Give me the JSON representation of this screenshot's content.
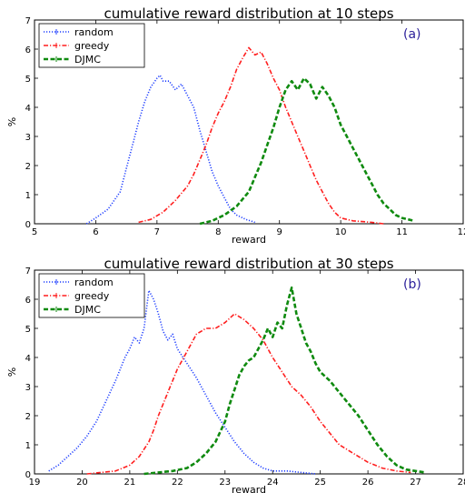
{
  "chart_data": [
    {
      "type": "line",
      "title": "cumulative reward distribution at 10 steps",
      "xlabel": "reward",
      "ylabel": "%",
      "xlim": [
        5,
        12
      ],
      "ylim": [
        0,
        7
      ],
      "xticks": [
        "5",
        "6",
        "7",
        "8",
        "9",
        "10",
        "11",
        "12"
      ],
      "yticks": [
        "0",
        "1",
        "2",
        "3",
        "4",
        "5",
        "6",
        "7"
      ],
      "annotation": "(a)",
      "legend_position": "top-left",
      "grid": false,
      "series": [
        {
          "name": "random",
          "color": "#1f3fff",
          "style": "dotted",
          "x": [
            5.85,
            6.0,
            6.2,
            6.4,
            6.5,
            6.6,
            6.7,
            6.8,
            6.9,
            7.0,
            7.05,
            7.1,
            7.2,
            7.3,
            7.4,
            7.5,
            7.6,
            7.7,
            7.8,
            7.9,
            8.0,
            8.1,
            8.2,
            8.3,
            8.45,
            8.6
          ],
          "y": [
            0.0,
            0.2,
            0.5,
            1.1,
            1.9,
            2.7,
            3.5,
            4.2,
            4.7,
            5.0,
            5.1,
            4.9,
            4.9,
            4.6,
            4.8,
            4.4,
            4.0,
            3.2,
            2.5,
            1.8,
            1.3,
            0.9,
            0.5,
            0.3,
            0.15,
            0.05
          ]
        },
        {
          "name": "greedy",
          "color": "#ff1f1f",
          "style": "dashdot",
          "x": [
            6.7,
            6.9,
            7.1,
            7.3,
            7.5,
            7.6,
            7.7,
            7.8,
            7.9,
            8.0,
            8.1,
            8.2,
            8.3,
            8.4,
            8.5,
            8.6,
            8.7,
            8.8,
            8.9,
            9.0,
            9.1,
            9.2,
            9.3,
            9.4,
            9.5,
            9.6,
            9.7,
            9.8,
            9.9,
            10.0,
            10.2,
            10.5,
            10.7
          ],
          "y": [
            0.05,
            0.15,
            0.4,
            0.8,
            1.3,
            1.7,
            2.2,
            2.7,
            3.3,
            3.8,
            4.2,
            4.7,
            5.3,
            5.7,
            6.05,
            5.8,
            5.9,
            5.5,
            5.0,
            4.6,
            4.0,
            3.5,
            3.0,
            2.5,
            2.0,
            1.5,
            1.1,
            0.7,
            0.4,
            0.2,
            0.1,
            0.05,
            0.0
          ]
        },
        {
          "name": "DJMC",
          "color": "#0f8a0f",
          "style": "dashed",
          "x": [
            7.7,
            7.9,
            8.1,
            8.3,
            8.5,
            8.6,
            8.7,
            8.8,
            8.9,
            9.0,
            9.1,
            9.2,
            9.3,
            9.4,
            9.5,
            9.6,
            9.7,
            9.8,
            9.9,
            10.0,
            10.1,
            10.2,
            10.3,
            10.4,
            10.5,
            10.6,
            10.7,
            10.8,
            10.9,
            11.0,
            11.1,
            11.2
          ],
          "y": [
            0.0,
            0.1,
            0.3,
            0.6,
            1.1,
            1.6,
            2.1,
            2.7,
            3.3,
            4.0,
            4.6,
            4.9,
            4.6,
            5.0,
            4.8,
            4.3,
            4.7,
            4.4,
            4.0,
            3.4,
            3.0,
            2.6,
            2.2,
            1.8,
            1.4,
            1.0,
            0.7,
            0.5,
            0.3,
            0.2,
            0.15,
            0.1
          ]
        }
      ]
    },
    {
      "type": "line",
      "title": "cumulative reward distribution at 30 steps",
      "xlabel": "reward",
      "ylabel": "%",
      "xlim": [
        19,
        28
      ],
      "ylim": [
        0,
        7
      ],
      "xticks": [
        "19",
        "20",
        "21",
        "22",
        "23",
        "24",
        "25",
        "26",
        "27",
        "28"
      ],
      "yticks": [
        "0",
        "1",
        "2",
        "3",
        "4",
        "5",
        "6",
        "7"
      ],
      "annotation": "(b)",
      "legend_position": "top-left",
      "grid": false,
      "series": [
        {
          "name": "random",
          "color": "#1f3fff",
          "style": "dotted",
          "x": [
            19.3,
            19.5,
            19.7,
            19.9,
            20.1,
            20.3,
            20.5,
            20.7,
            20.9,
            21.0,
            21.1,
            21.2,
            21.3,
            21.4,
            21.5,
            21.6,
            21.7,
            21.8,
            21.9,
            22.0,
            22.2,
            22.4,
            22.6,
            22.8,
            23.0,
            23.2,
            23.4,
            23.6,
            23.8,
            24.0,
            24.3,
            24.6,
            24.9
          ],
          "y": [
            0.1,
            0.3,
            0.6,
            0.9,
            1.3,
            1.8,
            2.5,
            3.2,
            4.0,
            4.3,
            4.7,
            4.5,
            5.0,
            6.3,
            6.0,
            5.5,
            4.9,
            4.6,
            4.8,
            4.3,
            3.8,
            3.3,
            2.7,
            2.1,
            1.6,
            1.1,
            0.7,
            0.4,
            0.2,
            0.1,
            0.1,
            0.05,
            0.0
          ]
        },
        {
          "name": "greedy",
          "color": "#ff1f1f",
          "style": "dashdot",
          "x": [
            20.1,
            20.4,
            20.7,
            21.0,
            21.2,
            21.4,
            21.5,
            21.6,
            21.8,
            22.0,
            22.2,
            22.4,
            22.6,
            22.8,
            23.0,
            23.2,
            23.4,
            23.6,
            23.8,
            24.0,
            24.2,
            24.4,
            24.6,
            24.8,
            25.0,
            25.2,
            25.4,
            25.6,
            25.8,
            26.0,
            26.3,
            26.6,
            26.9
          ],
          "y": [
            0.0,
            0.05,
            0.1,
            0.3,
            0.6,
            1.1,
            1.5,
            2.0,
            2.8,
            3.6,
            4.2,
            4.8,
            5.0,
            5.0,
            5.2,
            5.5,
            5.3,
            5.0,
            4.6,
            4.0,
            3.5,
            3.0,
            2.7,
            2.3,
            1.8,
            1.4,
            1.0,
            0.8,
            0.6,
            0.4,
            0.2,
            0.1,
            0.05
          ]
        },
        {
          "name": "DJMC",
          "color": "#0f8a0f",
          "style": "dashed",
          "x": [
            21.3,
            21.6,
            21.9,
            22.2,
            22.4,
            22.6,
            22.8,
            23.0,
            23.1,
            23.2,
            23.3,
            23.4,
            23.5,
            23.6,
            23.7,
            23.8,
            23.9,
            24.0,
            24.1,
            24.2,
            24.3,
            24.4,
            24.5,
            24.6,
            24.7,
            24.8,
            24.9,
            25.0,
            25.2,
            25.4,
            25.6,
            25.8,
            26.0,
            26.2,
            26.4,
            26.6,
            26.8,
            27.0,
            27.2
          ],
          "y": [
            0.0,
            0.05,
            0.1,
            0.2,
            0.4,
            0.7,
            1.1,
            1.8,
            2.4,
            2.9,
            3.4,
            3.7,
            3.9,
            4.0,
            4.3,
            4.6,
            5.0,
            4.7,
            5.2,
            5.0,
            5.8,
            6.4,
            5.5,
            5.0,
            4.5,
            4.2,
            3.8,
            3.5,
            3.2,
            2.8,
            2.4,
            2.0,
            1.5,
            1.0,
            0.6,
            0.3,
            0.15,
            0.1,
            0.05
          ]
        }
      ]
    }
  ]
}
